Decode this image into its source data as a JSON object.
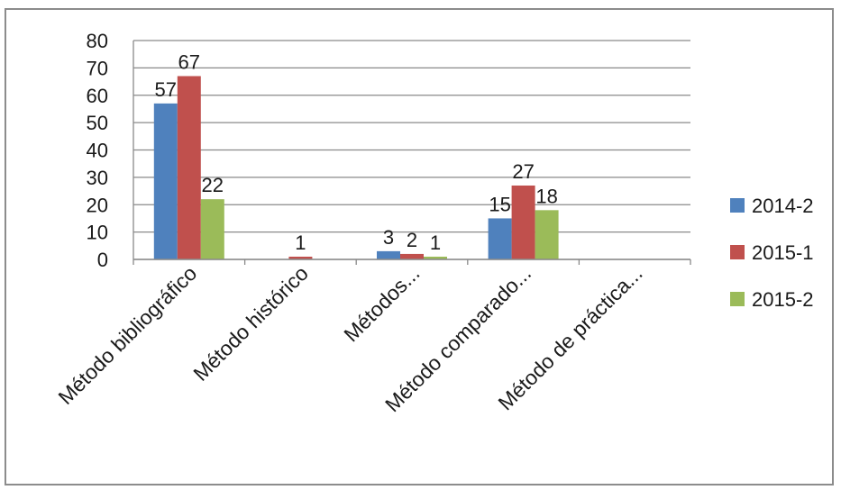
{
  "chart_data": {
    "type": "bar",
    "categories": [
      "Método bibliográfico",
      "Método histórico",
      "Métodos...",
      "Método comparado...",
      "Método de práctica..."
    ],
    "series": [
      {
        "name": "2014-2",
        "color": "#4F81BD",
        "values": [
          57,
          0,
          3,
          15,
          0
        ],
        "labels": [
          "57",
          "",
          "3",
          "15",
          ""
        ]
      },
      {
        "name": "2015-1",
        "color": "#C0504D",
        "values": [
          67,
          1,
          2,
          27,
          0
        ],
        "labels": [
          "67",
          "1",
          "2",
          "27",
          ""
        ]
      },
      {
        "name": "2015-2",
        "color": "#9BBB59",
        "values": [
          22,
          0,
          1,
          18,
          0
        ],
        "labels": [
          "22",
          "",
          "1",
          "18",
          ""
        ]
      }
    ],
    "yticks": [
      "0",
      "10",
      "20",
      "30",
      "40",
      "50",
      "60",
      "70",
      "80"
    ],
    "ylim": [
      0,
      80
    ],
    "grid": true,
    "legend": "right",
    "title": "",
    "xlabel": "",
    "ylabel": ""
  }
}
